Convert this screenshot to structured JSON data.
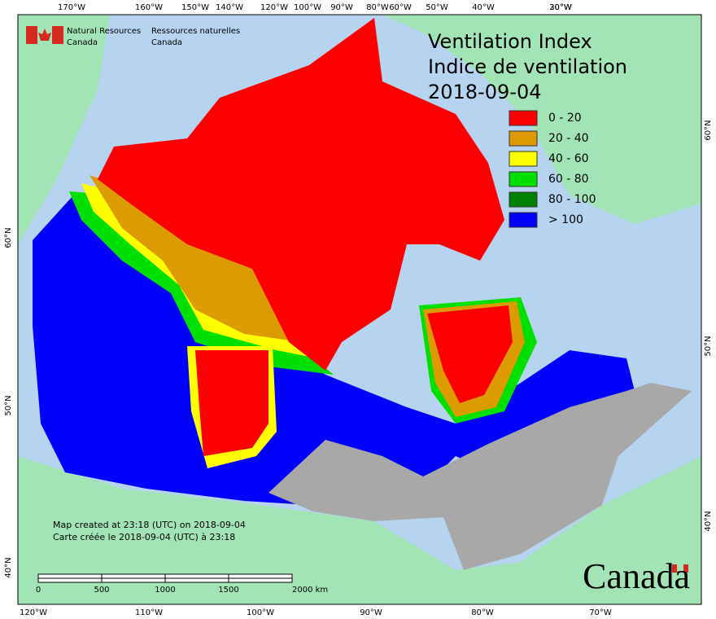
{
  "header": {
    "agency_en": [
      "Natural Resources",
      "Canada"
    ],
    "agency_fr": [
      "Ressources naturelles",
      "Canada"
    ]
  },
  "title": {
    "en": "Ventilation Index",
    "fr": "Indice de ventilation",
    "date": "2018-09-04"
  },
  "legend": [
    {
      "label": "0 - 20",
      "color": "#ff0000"
    },
    {
      "label": "20 - 40",
      "color": "#dc9b00"
    },
    {
      "label": "40 - 60",
      "color": "#ffff00"
    },
    {
      "label": "60 - 80",
      "color": "#00e000"
    },
    {
      "label": "80 - 100",
      "color": "#008000"
    },
    {
      "label": "> 100",
      "color": "#0000ff"
    }
  ],
  "footer": {
    "created_en": "Map created at 23:18 (UTC) on 2018-09-04",
    "created_fr": "Carte créée le 2018-09-04 (UTC) à 23:18"
  },
  "scale_bar": [
    "0",
    "500",
    "1000",
    "1500",
    "2000  km"
  ],
  "wordmark": "Canada",
  "graticule": {
    "top": [
      "170°W",
      "160°W",
      "150°W",
      "140°W",
      "120°W",
      "100°W",
      "90°W",
      "80°W",
      "60°W",
      "50°W",
      "40°W",
      "30°W",
      "20°W"
    ],
    "bottom": [
      "120°W",
      "110°W",
      "100°W",
      "90°W",
      "80°W",
      "70°W"
    ],
    "left": [
      "60°N",
      "50°N",
      "40°N"
    ],
    "right": [
      "60°N",
      "50°N",
      "40°N"
    ]
  }
}
